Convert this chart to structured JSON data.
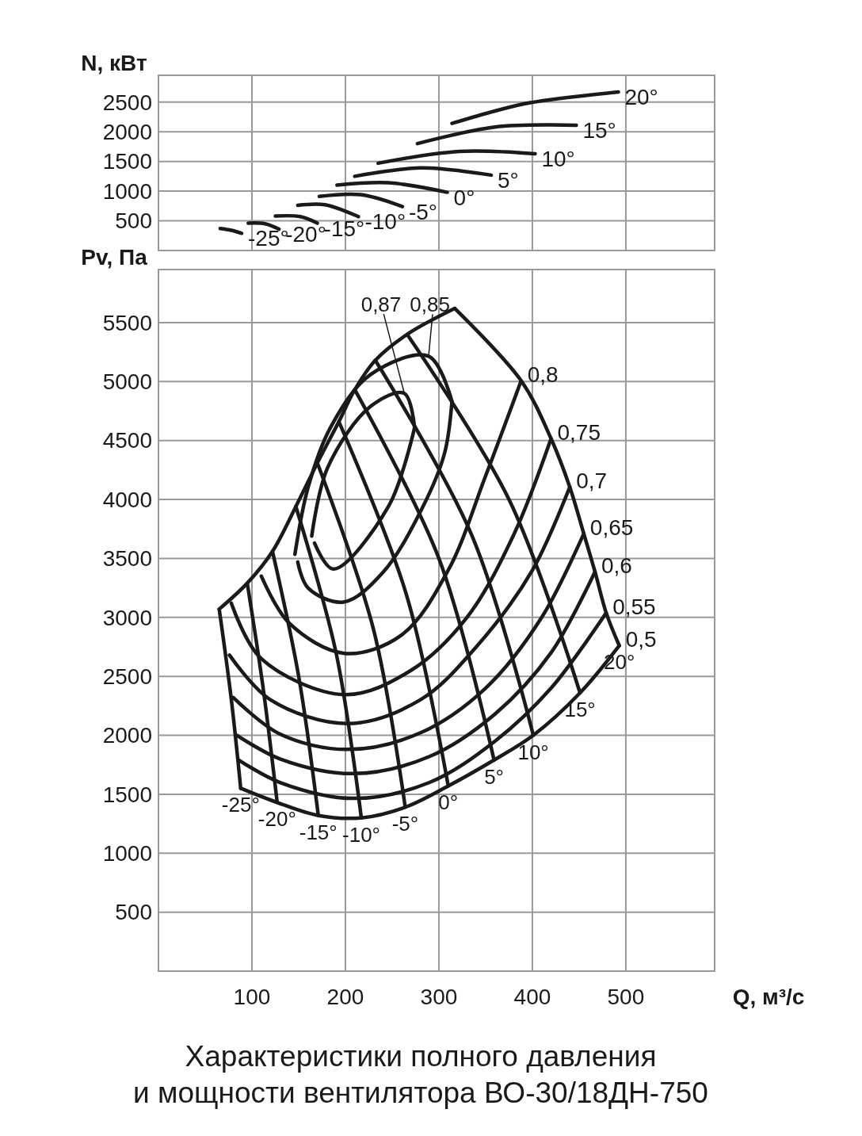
{
  "chart_data": [
    {
      "type": "line",
      "ylabel": "N, кВт",
      "xlim": [
        0,
        595
      ],
      "ylim": [
        0,
        2950
      ],
      "xticks": [
        100,
        200,
        300,
        400,
        500
      ],
      "yticks": [
        500,
        1000,
        1500,
        2000,
        2500
      ],
      "grid": true,
      "tick_labels": "y",
      "series": [
        {
          "name": "-25°",
          "color": "#1a1a1a",
          "x": [
            66,
            78,
            89
          ],
          "values": [
            370,
            340,
            290
          ]
        },
        {
          "name": "-20°",
          "color": "#1a1a1a",
          "x": [
            96,
            114,
            129
          ],
          "values": [
            460,
            450,
            360
          ]
        },
        {
          "name": "-15°",
          "color": "#1a1a1a",
          "x": [
            125,
            152,
            170
          ],
          "values": [
            580,
            570,
            460
          ]
        },
        {
          "name": "-10°",
          "color": "#1a1a1a",
          "x": [
            149,
            178,
            214
          ],
          "values": [
            760,
            770,
            570
          ]
        },
        {
          "name": "-5°",
          "color": "#1a1a1a",
          "x": [
            172,
            216,
            261
          ],
          "values": [
            910,
            940,
            740
          ]
        },
        {
          "name": "0°",
          "color": "#1a1a1a",
          "x": [
            191,
            246,
            309
          ],
          "values": [
            1100,
            1140,
            980
          ]
        },
        {
          "name": "5°",
          "color": "#1a1a1a",
          "x": [
            210,
            280,
            356
          ],
          "values": [
            1250,
            1390,
            1270
          ]
        },
        {
          "name": "10°",
          "color": "#1a1a1a",
          "x": [
            235,
            322,
            403
          ],
          "values": [
            1470,
            1670,
            1630
          ]
        },
        {
          "name": "15°",
          "color": "#1a1a1a",
          "x": [
            277,
            360,
            447
          ],
          "values": [
            1800,
            2080,
            2110
          ]
        },
        {
          "name": "20°",
          "color": "#1a1a1a",
          "x": [
            314,
            360,
            398,
            492
          ],
          "values": [
            2140,
            2350,
            2490,
            2670
          ]
        }
      ]
    },
    {
      "type": "line",
      "title": "Характеристики полного давления\nи мощности вентилятора ВО-30/18ДН-750",
      "xlabel": "Q, м³/с",
      "ylabel": "Pv, Па",
      "xlim": [
        0,
        595
      ],
      "ylim": [
        0,
        5950
      ],
      "xticks": [
        100,
        200,
        300,
        400,
        500
      ],
      "yticks": [
        500,
        1000,
        1500,
        2000,
        2500,
        3000,
        3500,
        4000,
        4500,
        5000,
        5500
      ],
      "grid": true,
      "series": [
        {
          "color": "#1a1a1a",
          "x": [
            65,
            95,
            122,
            147,
            170,
            193,
            210,
            232,
            266,
            317
          ],
          "values": [
            3070,
            3290,
            3560,
            3940,
            4310,
            4660,
            4930,
            5180,
            5400,
            5620
          ]
        },
        {
          "name": "-25°",
          "color": "#1a1a1a",
          "x": [
            65,
            78,
            88
          ],
          "values": [
            3070,
            2300,
            1550
          ]
        },
        {
          "name": "-20°",
          "color": "#1a1a1a",
          "x": [
            95,
            112,
            127
          ],
          "values": [
            3290,
            2400,
            1430
          ]
        },
        {
          "name": "-15°",
          "color": "#1a1a1a",
          "x": [
            122,
            150,
            171
          ],
          "values": [
            3560,
            2500,
            1320
          ]
        },
        {
          "name": "-10°",
          "color": "#1a1a1a",
          "x": [
            147,
            190,
            217
          ],
          "values": [
            3940,
            2700,
            1300
          ]
        },
        {
          "name": "-5°",
          "color": "#1a1a1a",
          "x": [
            170,
            230,
            264
          ],
          "values": [
            4310,
            2900,
            1390
          ]
        },
        {
          "name": "0°",
          "color": "#1a1a1a",
          "x": [
            193,
            265,
            310
          ],
          "values": [
            4660,
            3200,
            1570
          ]
        },
        {
          "name": "5°",
          "color": "#1a1a1a",
          "x": [
            210,
            300,
            359
          ],
          "values": [
            4930,
            3500,
            1790
          ]
        },
        {
          "name": "10°",
          "color": "#1a1a1a",
          "x": [
            232,
            335,
            401
          ],
          "values": [
            5180,
            3700,
            2000
          ]
        },
        {
          "name": "15°",
          "color": "#1a1a1a",
          "x": [
            266,
            375,
            451
          ],
          "values": [
            5400,
            4000,
            2360
          ]
        },
        {
          "name": "20°",
          "color": "#1a1a1a",
          "x": [
            317,
            388,
            420,
            440,
            455,
            467,
            479,
            493
          ],
          "values": [
            5620,
            5007,
            4516,
            4106,
            3710,
            3387,
            3038,
            2760
          ]
        },
        {
          "name": "0,5",
          "color": "#1a1a1a",
          "x": [
            88,
            127,
            171,
            217,
            264,
            310,
            359,
            401,
            451,
            493
          ],
          "values": [
            1550,
            1430,
            1320,
            1300,
            1390,
            1570,
            1790,
            2000,
            2360,
            2760
          ]
        },
        {
          "name": "0,55",
          "color": "#1a1a1a",
          "x": [
            86,
            130,
            209,
            290,
            360,
            420,
            479
          ],
          "values": [
            1790,
            1600,
            1465,
            1600,
            1950,
            2400,
            3038
          ]
        },
        {
          "name": "0,6",
          "color": "#1a1a1a",
          "x": [
            84,
            130,
            209,
            290,
            360,
            420,
            467
          ],
          "values": [
            2000,
            1800,
            1675,
            1820,
            2180,
            2700,
            3387
          ]
        },
        {
          "name": "0,65",
          "color": "#1a1a1a",
          "x": [
            80,
            130,
            202,
            280,
            350,
            410,
            455
          ],
          "values": [
            2320,
            2010,
            1880,
            2020,
            2400,
            3000,
            3710
          ]
        },
        {
          "name": "0,7",
          "color": "#1a1a1a",
          "x": [
            76,
            120,
            202,
            280,
            340,
            400,
            440
          ],
          "values": [
            2680,
            2300,
            2100,
            2300,
            2750,
            3400,
            4106
          ]
        },
        {
          "name": "0,75",
          "color": "#1a1a1a",
          "x": [
            78,
            110,
            199,
            270,
            330,
            380,
            420
          ],
          "values": [
            3120,
            2650,
            2345,
            2550,
            3000,
            3700,
            4516
          ]
        },
        {
          "name": "0,8",
          "color": "#1a1a1a",
          "x": [
            110,
            140,
            199,
            260,
            310,
            350,
            388
          ],
          "values": [
            3350,
            2950,
            2695,
            2850,
            3400,
            4200,
            5007
          ]
        },
        {
          "name": "0,85",
          "color": "#1a1a1a",
          "x": [
            146,
            160,
            184,
            227,
            289,
            314
          ],
          "values": [
            3535,
            4100,
            4610,
            5060,
            5215,
            4832
          ]
        },
        {
          "color": "#1a1a1a",
          "x": [
            149,
            160,
            198,
            240,
            283,
            306,
            314
          ],
          "values": [
            3470,
            3250,
            3130,
            3380,
            3940,
            4390,
            4832
          ]
        },
        {
          "name": "0,87",
          "color": "#1a1a1a",
          "x": [
            164,
            181,
            227,
            263,
            274
          ],
          "values": [
            3690,
            4270,
            4790,
            4900,
            4610
          ]
        },
        {
          "color": "#1a1a1a",
          "x": [
            167,
            187,
            246,
            274
          ],
          "values": [
            3630,
            3410,
            3940,
            4610
          ]
        }
      ]
    }
  ]
}
